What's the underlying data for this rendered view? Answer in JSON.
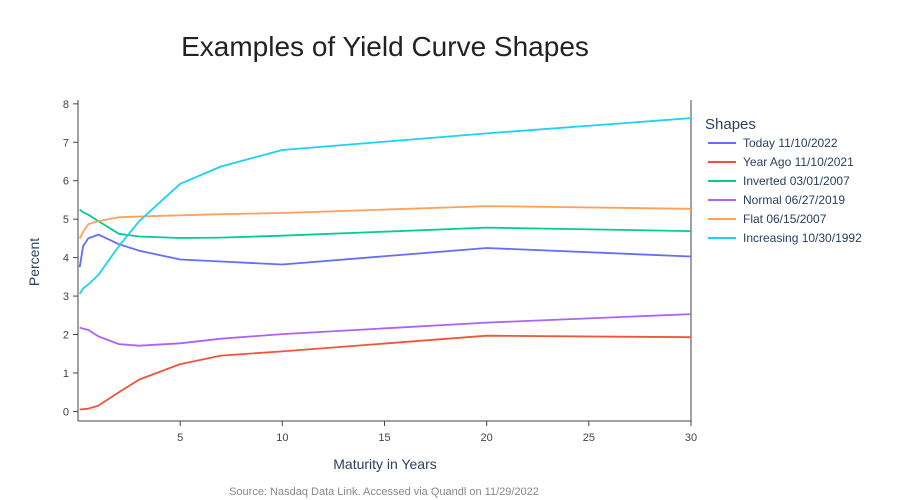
{
  "chart_data": {
    "type": "line",
    "title": "Examples of Yield Curve Shapes",
    "xlabel": "Maturity in Years",
    "ylabel": "Percent",
    "xlim": [
      0,
      30
    ],
    "ylim": [
      -0.25,
      8.1
    ],
    "xticks": [
      5,
      10,
      15,
      20,
      25,
      30
    ],
    "yticks": [
      0,
      1,
      2,
      3,
      4,
      5,
      6,
      7,
      8
    ],
    "grid": false,
    "legend": {
      "title": "Shapes",
      "placement": "right"
    },
    "source": "Source: Nasdaq Data Link. Accessed via Quandl on 11/29/2022",
    "maturities": [
      0.083,
      0.25,
      0.5,
      1,
      2,
      3,
      5,
      7,
      10,
      20,
      30
    ],
    "series": [
      {
        "name": "Today 11/10/2022",
        "color": "#636efa",
        "values": [
          3.75,
          4.3,
          4.5,
          4.6,
          4.35,
          4.18,
          3.95,
          3.9,
          3.82,
          4.25,
          4.03
        ]
      },
      {
        "name": "Year Ago 11/10/2021",
        "color": "#ef553b",
        "values": [
          0.05,
          0.06,
          0.07,
          0.15,
          0.5,
          0.83,
          1.23,
          1.45,
          1.56,
          1.97,
          1.93
        ]
      },
      {
        "name": "Inverted 03/01/2007",
        "color": "#00cc96",
        "values": [
          5.25,
          5.18,
          5.12,
          4.95,
          4.62,
          4.55,
          4.51,
          4.52,
          4.57,
          4.78,
          4.69
        ]
      },
      {
        "name": "Normal 06/27/2019",
        "color": "#ab63fa",
        "values": [
          2.18,
          2.15,
          2.12,
          1.95,
          1.75,
          1.71,
          1.77,
          1.89,
          2.01,
          2.31,
          2.53
        ]
      },
      {
        "name": "Flat 06/15/2007",
        "color": "#ffa15a",
        "values": [
          4.5,
          4.67,
          4.87,
          4.95,
          5.05,
          5.07,
          5.1,
          5.13,
          5.16,
          5.34,
          5.27
        ]
      },
      {
        "name": "Increasing 10/30/1992",
        "color": "#19d3f3",
        "values": [
          3.05,
          3.2,
          3.3,
          3.55,
          4.3,
          4.95,
          5.92,
          6.37,
          6.8,
          7.23,
          7.63
        ]
      }
    ]
  }
}
